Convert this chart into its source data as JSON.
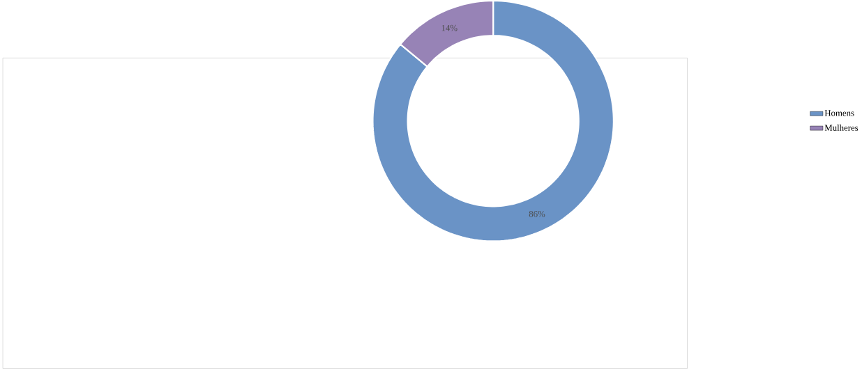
{
  "chart_data": {
    "type": "donut",
    "categories": [
      "Homens",
      "Mulheres"
    ],
    "values": [
      86,
      14
    ],
    "colors": [
      "#6a93c6",
      "#9783b6"
    ],
    "value_labels": [
      "86%",
      "14%"
    ],
    "legend": "right"
  }
}
